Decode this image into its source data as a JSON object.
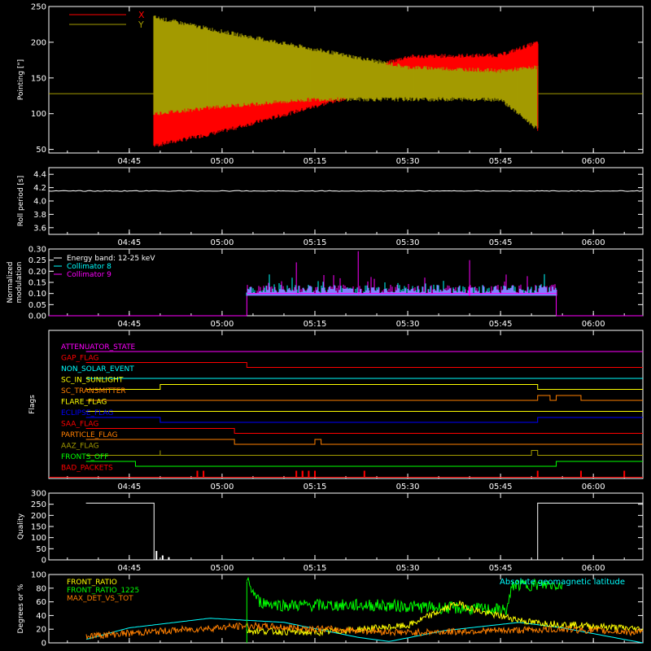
{
  "time_axis": {
    "ticks": [
      "04:45",
      "05:00",
      "05:15",
      "05:30",
      "05:45",
      "06:00"
    ],
    "start_min": 272.0,
    "end_min": 368.0
  },
  "colors": {
    "x": "#ff0000",
    "y": "#a39b00",
    "white": "#ffffff",
    "cyan": "#00ffff",
    "magenta": "#ff00ff",
    "green": "#00ff00",
    "yellow": "#ffff00",
    "orange": "#ff7f00",
    "blue": "#0000ff"
  },
  "chart_data": [
    {
      "type": "area",
      "id": "pointing",
      "ylabel": "Pointing [\"]",
      "ylim": [
        45,
        250
      ],
      "yticks": [
        50,
        100,
        150,
        200,
        250
      ],
      "legend": [
        {
          "name": "X",
          "color": "#ff0000"
        },
        {
          "name": "Y",
          "color": "#a39b00"
        }
      ],
      "legend_position": "top-left",
      "baseline": 128,
      "active_range": [
        "04:49",
        "05:51"
      ],
      "series": [
        {
          "name": "X",
          "x": [
            "04:49",
            "05:00",
            "05:15",
            "05:30",
            "05:45",
            "05:51"
          ],
          "min": [
            55,
            75,
            110,
            145,
            150,
            148
          ],
          "max": [
            160,
            145,
            140,
            180,
            182,
            200
          ]
        },
        {
          "name": "Y",
          "x": [
            "04:49",
            "05:00",
            "05:15",
            "05:30",
            "05:45",
            "05:51"
          ],
          "min": [
            100,
            110,
            120,
            120,
            120,
            78
          ],
          "max": [
            235,
            215,
            190,
            165,
            160,
            165
          ]
        }
      ]
    },
    {
      "type": "line",
      "id": "roll",
      "ylabel": "Roll period [s]",
      "ylim": [
        3.5,
        4.5
      ],
      "yticks": [
        "3.6",
        "3.8",
        "4.0",
        "4.2",
        "4.4"
      ],
      "series": [
        {
          "name": "",
          "x": [
            "04:38",
            "06:08"
          ],
          "y": [
            4.15,
            4.15
          ]
        }
      ]
    },
    {
      "type": "line",
      "id": "modulation",
      "ylabel": "Normalized modulation",
      "ylim": [
        0,
        0.3
      ],
      "yticks": [
        "0.00",
        "0.05",
        "0.10",
        "0.15",
        "0.20",
        "0.25",
        "0.30"
      ],
      "legend": [
        {
          "name": "Energy band: 12-25 keV",
          "color": "#ffffff"
        },
        {
          "name": "Collimator 8",
          "color": "#00ffff"
        },
        {
          "name": "Collimator 9",
          "color": "#ff00ff"
        }
      ],
      "legend_position": "top-left",
      "active_range": [
        "05:04",
        "05:54"
      ],
      "typical_value": 0.1,
      "spikes": [
        {
          "x": "05:22",
          "y": 0.29
        },
        {
          "x": "05:12",
          "y": 0.24
        },
        {
          "x": "05:40",
          "y": 0.25
        }
      ]
    },
    {
      "type": "line",
      "id": "flags",
      "ylabel": "Flags",
      "flags": [
        {
          "name": "ATTENUATOR_STATE",
          "color": "#ff00ff",
          "segments": [
            [
              "04:38",
              "06:08",
              1
            ]
          ]
        },
        {
          "name": "GAP_FLAG",
          "color": "#ff0000",
          "segments": [
            [
              "04:38",
              "05:04",
              1
            ],
            [
              "05:04",
              "06:08",
              0
            ]
          ]
        },
        {
          "name": "NON_SOLAR_EVENT",
          "color": "#00ffff",
          "segments": [
            [
              "04:38",
              "06:08",
              0
            ]
          ]
        },
        {
          "name": "SC_IN_SUNLIGHT",
          "color": "#ffff00",
          "segments": [
            [
              "04:38",
              "04:50",
              0
            ],
            [
              "04:50",
              "05:51",
              1
            ],
            [
              "05:51",
              "06:08",
              0
            ]
          ]
        },
        {
          "name": "SC_TRANSMITTER",
          "color": "#ff7f00",
          "segments": [
            [
              "04:38",
              "05:51",
              0
            ],
            [
              "05:51",
              "05:53",
              1
            ],
            [
              "05:53",
              "05:54",
              0
            ],
            [
              "05:54",
              "05:58",
              1
            ],
            [
              "05:58",
              "06:08",
              0
            ]
          ]
        },
        {
          "name": "FLARE_FLAG",
          "color": "#ffff00",
          "segments": [
            [
              "04:38",
              "06:08",
              0
            ]
          ]
        },
        {
          "name": "ECLIPSE_FLAG",
          "color": "#0000ff",
          "segments": [
            [
              "04:38",
              "04:50",
              1
            ],
            [
              "04:50",
              "05:51",
              0
            ],
            [
              "05:51",
              "06:08",
              1
            ]
          ]
        },
        {
          "name": "SAA_FLAG",
          "color": "#ff0000",
          "segments": [
            [
              "04:38",
              "05:02",
              1
            ],
            [
              "05:02",
              "06:08",
              0
            ]
          ]
        },
        {
          "name": "PARTICLE_FLAG",
          "color": "#ff7f00",
          "segments": [
            [
              "04:38",
              "05:02",
              1
            ],
            [
              "05:02",
              "05:15",
              0
            ],
            [
              "05:15",
              "05:16",
              1
            ],
            [
              "05:16",
              "06:08",
              0
            ]
          ]
        },
        {
          "name": "AAZ_FLAG",
          "color": "#a39b00",
          "segments": [
            [
              "04:38",
              "04:50",
              0
            ],
            [
              "04:50",
              "04:50",
              1
            ],
            [
              "04:50",
              "05:50",
              0
            ],
            [
              "05:50",
              "05:51",
              1
            ],
            [
              "05:51",
              "06:08",
              0
            ]
          ]
        },
        {
          "name": "FRONTS_OFF",
          "color": "#00ff00",
          "segments": [
            [
              "04:38",
              "04:46",
              1
            ],
            [
              "04:46",
              "05:54",
              0
            ],
            [
              "05:54",
              "06:08",
              1
            ]
          ]
        },
        {
          "name": "BAD_PACKETS",
          "color": "#ff0000",
          "events": [
            "04:56",
            "04:57",
            "05:12",
            "05:13",
            "05:13",
            "05:14",
            "05:15",
            "05:15",
            "05:23",
            "05:51",
            "05:58",
            "06:05"
          ]
        }
      ]
    },
    {
      "type": "line",
      "id": "quality",
      "ylabel": "Quality",
      "ylim": [
        0,
        300
      ],
      "yticks": [
        0,
        50,
        100,
        150,
        200,
        250,
        300
      ],
      "series": [
        {
          "name": "",
          "x": [
            "04:38",
            "04:49",
            "04:49",
            "05:51",
            "05:51",
            "06:08"
          ],
          "y": [
            255,
            255,
            0,
            0,
            255,
            255
          ]
        }
      ],
      "blips": [
        {
          "x": "04:49",
          "y": 40
        },
        {
          "x": "04:50",
          "y": 20
        },
        {
          "x": "04:51",
          "y": 12
        }
      ]
    },
    {
      "type": "line",
      "id": "ratios",
      "ylabel": "Degrees or %",
      "ylim": [
        0,
        100
      ],
      "yticks": [
        0,
        20,
        40,
        60,
        80,
        100
      ],
      "legend": [
        {
          "name": "FRONT_RATIO",
          "color": "#ffff00"
        },
        {
          "name": "FRONT_RATIO_1225",
          "color": "#00ff00"
        },
        {
          "name": "MAX_DET_VS_TOT",
          "color": "#ff7f00"
        }
      ],
      "legend_position": "top-left",
      "annotation": {
        "text": "Absolute geomagnetic latitude",
        "color": "#00ffff"
      },
      "series": [
        {
          "name": "Absolute geomagnetic latitude",
          "x": [
            "04:38",
            "04:45",
            "04:58",
            "05:10",
            "05:22",
            "05:27",
            "05:36",
            "05:48",
            "05:55",
            "06:05",
            "06:08"
          ],
          "y": [
            5,
            22,
            36,
            30,
            8,
            2,
            18,
            30,
            22,
            5,
            0
          ]
        },
        {
          "name": "FRONT_RATIO_1225",
          "x": [
            "05:04",
            "05:06",
            "05:10",
            "05:25",
            "05:40",
            "05:46",
            "05:47",
            "05:55"
          ],
          "y": [
            90,
            60,
            55,
            55,
            50,
            48,
            85,
            85
          ]
        },
        {
          "name": "FRONT_RATIO",
          "x": [
            "05:04",
            "05:15",
            "05:30",
            "05:38",
            "05:42",
            "05:50",
            "06:08"
          ],
          "y": [
            18,
            15,
            25,
            58,
            45,
            30,
            20
          ]
        },
        {
          "name": "MAX_DET_VS_TOT",
          "x": [
            "04:38",
            "05:04",
            "05:30",
            "05:55",
            "06:08"
          ],
          "y": [
            10,
            25,
            15,
            20,
            15
          ]
        }
      ]
    }
  ]
}
